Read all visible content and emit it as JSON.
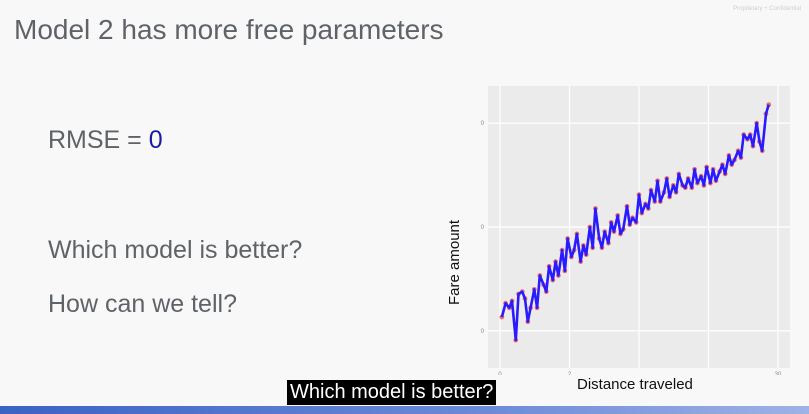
{
  "slide": {
    "title": "Model 2 has more free parameters",
    "confidential": "Proprietary + Confidential",
    "rmse_label": "RMSE = ",
    "rmse_value": "0",
    "question1": "Which model is better?",
    "question2": "How can we tell?",
    "caption": "Which model is better?"
  },
  "colors": {
    "line": "#2a1bff",
    "points": "#f0706a",
    "panel": "#ebebeb",
    "rmse_value": "#1a1aa6"
  },
  "chart_data": {
    "type": "line",
    "xlabel": "Distance traveled",
    "ylabel": "Fare amount",
    "x_ticks": [
      "0",
      "2",
      "",
      "",
      "30"
    ],
    "y_ticks": [
      "0",
      "0",
      "0"
    ],
    "grid": true,
    "xlim": [
      0,
      30
    ],
    "ylim": [
      0,
      1
    ],
    "series": [
      {
        "values": [
          [
            0.2,
            0.06
          ],
          [
            0.6,
            0.12
          ],
          [
            1.0,
            0.1
          ],
          [
            1.3,
            0.13
          ],
          [
            1.7,
            -0.04
          ],
          [
            2.0,
            0.16
          ],
          [
            2.4,
            0.17
          ],
          [
            2.7,
            0.14
          ],
          [
            3.0,
            0.04
          ],
          [
            3.3,
            0.1
          ],
          [
            3.7,
            0.18
          ],
          [
            4.0,
            0.1
          ],
          [
            4.3,
            0.24
          ],
          [
            4.7,
            0.2
          ],
          [
            5.0,
            0.17
          ],
          [
            5.3,
            0.28
          ],
          [
            5.7,
            0.22
          ],
          [
            6.0,
            0.3
          ],
          [
            6.3,
            0.24
          ],
          [
            6.7,
            0.35
          ],
          [
            7.0,
            0.26
          ],
          [
            7.3,
            0.4
          ],
          [
            7.7,
            0.32
          ],
          [
            8.0,
            0.35
          ],
          [
            8.3,
            0.42
          ],
          [
            8.7,
            0.3
          ],
          [
            9.0,
            0.37
          ],
          [
            9.3,
            0.33
          ],
          [
            9.7,
            0.45
          ],
          [
            10.0,
            0.36
          ],
          [
            10.3,
            0.53
          ],
          [
            10.7,
            0.4
          ],
          [
            11.0,
            0.36
          ],
          [
            11.3,
            0.43
          ],
          [
            11.7,
            0.38
          ],
          [
            12.0,
            0.47
          ],
          [
            12.3,
            0.43
          ],
          [
            12.7,
            0.5
          ],
          [
            13.0,
            0.42
          ],
          [
            13.3,
            0.44
          ],
          [
            13.7,
            0.54
          ],
          [
            14.0,
            0.46
          ],
          [
            14.3,
            0.49
          ],
          [
            14.7,
            0.47
          ],
          [
            15.0,
            0.59
          ],
          [
            15.3,
            0.51
          ],
          [
            15.7,
            0.55
          ],
          [
            16.0,
            0.53
          ],
          [
            16.3,
            0.61
          ],
          [
            16.7,
            0.56
          ],
          [
            17.0,
            0.65
          ],
          [
            17.3,
            0.56
          ],
          [
            17.7,
            0.6
          ],
          [
            18.0,
            0.66
          ],
          [
            18.3,
            0.58
          ],
          [
            18.7,
            0.63
          ],
          [
            19.0,
            0.6
          ],
          [
            19.3,
            0.68
          ],
          [
            19.7,
            0.63
          ],
          [
            20.0,
            0.62
          ],
          [
            20.3,
            0.66
          ],
          [
            20.7,
            0.62
          ],
          [
            21.0,
            0.7
          ],
          [
            21.3,
            0.64
          ],
          [
            21.7,
            0.67
          ],
          [
            22.0,
            0.63
          ],
          [
            22.3,
            0.71
          ],
          [
            22.7,
            0.64
          ],
          [
            23.0,
            0.7
          ],
          [
            23.3,
            0.65
          ],
          [
            23.7,
            0.69
          ],
          [
            24.0,
            0.72
          ],
          [
            24.3,
            0.68
          ],
          [
            24.7,
            0.76
          ],
          [
            25.0,
            0.72
          ],
          [
            25.3,
            0.74
          ],
          [
            25.7,
            0.78
          ],
          [
            26.0,
            0.75
          ],
          [
            26.3,
            0.85
          ],
          [
            26.7,
            0.83
          ],
          [
            27.0,
            0.85
          ],
          [
            27.3,
            0.8
          ],
          [
            27.7,
            0.9
          ],
          [
            28.0,
            0.82
          ],
          [
            28.3,
            0.78
          ],
          [
            28.7,
            0.94
          ],
          [
            29.0,
            0.98
          ]
        ]
      }
    ]
  }
}
